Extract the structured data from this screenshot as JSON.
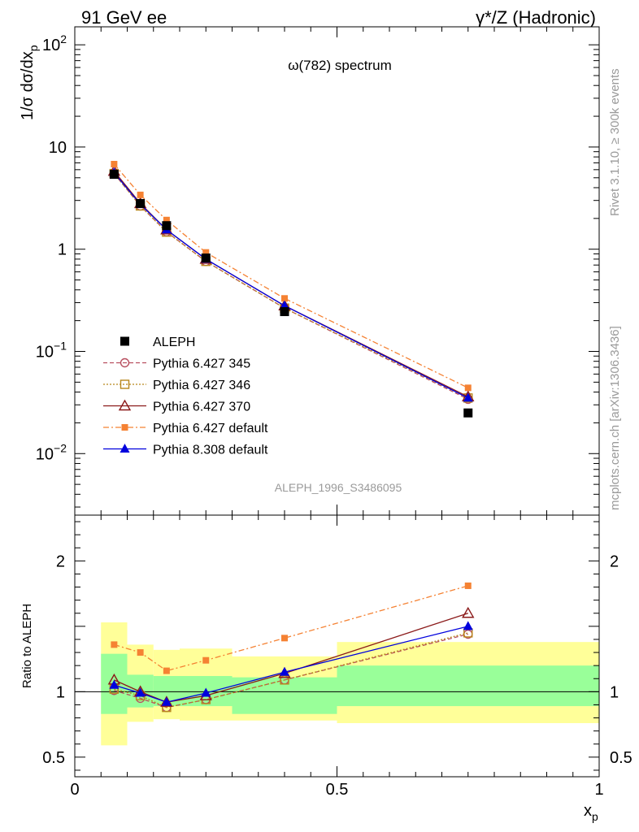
{
  "header": {
    "left": "91 GeV ee",
    "right": "γ*/Z (Hadronic)"
  },
  "side_text": {
    "rivet": "Rivet 3.1.10, ≥ 300k events",
    "mcplots": "mcplots.cern.ch [arXiv:1306.3436]"
  },
  "chart_data": [
    {
      "type": "scatter",
      "panel": "main",
      "title": "ω(782) spectrum",
      "analysis_label": "ALEPH_1996_S3486095",
      "ylabel": "1/σ dσ/dx_p",
      "ylabel_parts": {
        "main": "1/σ dσ/dx",
        "sub": "p"
      },
      "xlabel": "x_p",
      "xlabel_parts": {
        "main": "x",
        "sub": "p"
      },
      "xscale": "linear",
      "yscale": "log",
      "xlim": [
        0,
        1
      ],
      "ylim": [
        0.0025,
        150
      ],
      "y_tick_labels": [
        {
          "v": 0.01,
          "base": "10",
          "exp": "−2"
        },
        {
          "v": 0.1,
          "base": "10",
          "exp": "−1"
        },
        {
          "v": 1,
          "base": "1",
          "exp": ""
        },
        {
          "v": 10,
          "base": "10",
          "exp": ""
        },
        {
          "v": 100,
          "base": "10",
          "exp": "2"
        }
      ],
      "legend_position": "bottom-left",
      "x": [
        0.075,
        0.125,
        0.175,
        0.25,
        0.4,
        0.75
      ],
      "series": [
        {
          "name": "ALEPH",
          "color": "#000000",
          "marker": "square-filled",
          "line": "none",
          "values": [
            5.4,
            2.8,
            1.7,
            0.82,
            0.245,
            0.025
          ]
        },
        {
          "name": "Pythia 6.427 345",
          "color": "#b85060",
          "marker": "circle-open",
          "line": "dashed",
          "values": [
            5.5,
            2.65,
            1.48,
            0.76,
            0.265,
            0.034
          ]
        },
        {
          "name": "Pythia 6.427 346",
          "color": "#b8861b",
          "marker": "square-open",
          "line": "dotted",
          "values": [
            5.5,
            2.65,
            1.47,
            0.76,
            0.265,
            0.035
          ]
        },
        {
          "name": "Pythia 6.427 370",
          "color": "#8b1a1a",
          "marker": "triangle-open",
          "line": "solid",
          "values": [
            5.8,
            2.8,
            1.55,
            0.8,
            0.28,
            0.036
          ]
        },
        {
          "name": "Pythia 6.427 default",
          "color": "#f58233",
          "marker": "square-small",
          "line": "dashdot",
          "values": [
            6.8,
            3.4,
            1.93,
            0.93,
            0.33,
            0.044
          ]
        },
        {
          "name": "Pythia 8.308 default",
          "color": "#0000dd",
          "marker": "triangle-filled",
          "line": "solid",
          "values": [
            5.6,
            2.75,
            1.55,
            0.8,
            0.28,
            0.035
          ]
        }
      ]
    },
    {
      "type": "line",
      "panel": "ratio",
      "ylabel": "Ratio to ALEPH",
      "xlabel": "x_p",
      "xlim": [
        0,
        1
      ],
      "ylim": [
        0.35,
        2.35
      ],
      "x_tick_labels": [
        {
          "v": 0,
          "label": "0"
        },
        {
          "v": 0.5,
          "label": "0.5"
        },
        {
          "v": 1,
          "label": "1"
        }
      ],
      "y_tick_labels": [
        {
          "v": 0.5,
          "label": "0.5"
        },
        {
          "v": 1,
          "label": "1"
        },
        {
          "v": 2,
          "label": "2"
        }
      ],
      "uncertainty_bands": [
        {
          "x0": 0.05,
          "x1": 0.1,
          "inner": [
            0.83,
            1.29
          ],
          "outer": [
            0.59,
            1.53
          ]
        },
        {
          "x0": 0.1,
          "x1": 0.15,
          "inner": [
            0.88,
            1.13
          ],
          "outer": [
            0.77,
            1.36
          ]
        },
        {
          "x0": 0.15,
          "x1": 0.2,
          "inner": [
            0.89,
            1.12
          ],
          "outer": [
            0.79,
            1.32
          ]
        },
        {
          "x0": 0.2,
          "x1": 0.3,
          "inner": [
            0.89,
            1.12
          ],
          "outer": [
            0.78,
            1.33
          ]
        },
        {
          "x0": 0.3,
          "x1": 0.5,
          "inner": [
            0.83,
            1.11
          ],
          "outer": [
            0.78,
            1.27
          ]
        },
        {
          "x0": 0.5,
          "x1": 1.0,
          "inner": [
            0.89,
            1.2
          ],
          "outer": [
            0.76,
            1.38
          ]
        }
      ],
      "x": [
        0.075,
        0.125,
        0.175,
        0.25,
        0.4,
        0.75
      ],
      "series": [
        {
          "name": "Pythia 6.427 345",
          "values": [
            1.01,
            0.95,
            0.88,
            0.94,
            1.09,
            1.44
          ]
        },
        {
          "name": "Pythia 6.427 346",
          "values": [
            1.02,
            0.97,
            0.88,
            0.94,
            1.09,
            1.45
          ]
        },
        {
          "name": "Pythia 6.427 370",
          "values": [
            1.09,
            1.0,
            0.92,
            0.97,
            1.14,
            1.6
          ]
        },
        {
          "name": "Pythia 6.427 default",
          "values": [
            1.36,
            1.3,
            1.16,
            1.24,
            1.41,
            1.81
          ]
        },
        {
          "name": "Pythia 8.308 default",
          "values": [
            1.05,
            0.99,
            0.92,
            0.99,
            1.15,
            1.5
          ]
        }
      ]
    }
  ]
}
